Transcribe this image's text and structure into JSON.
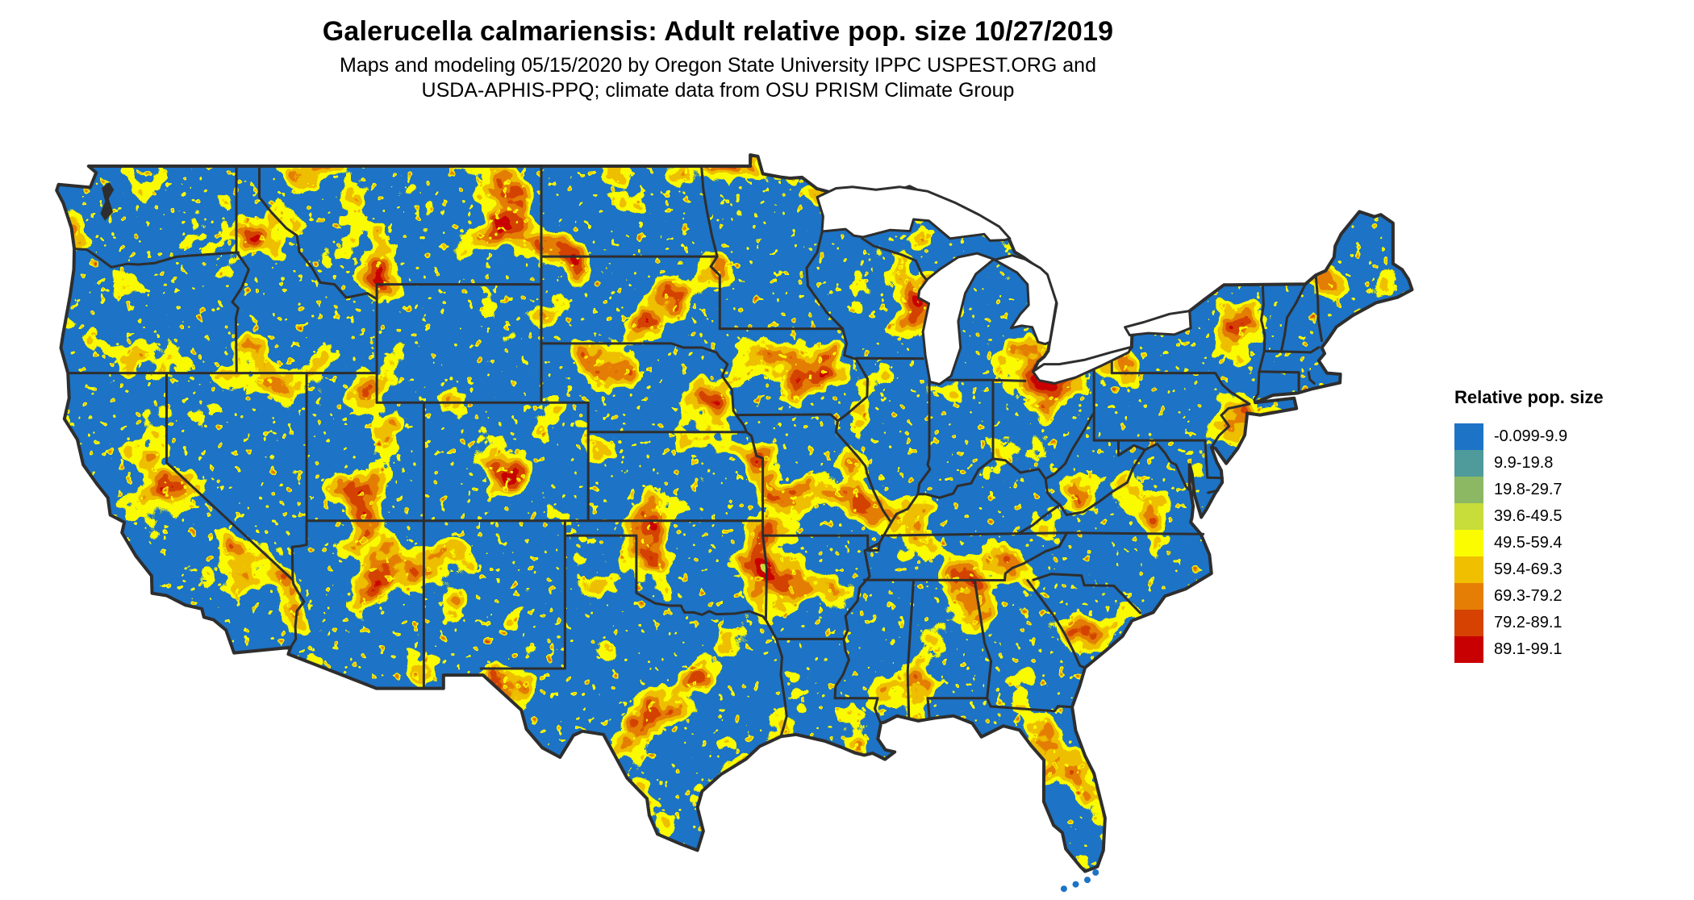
{
  "title": "Galerucella calmariensis: Adult relative pop. size 10/27/2019",
  "subtitle": {
    "line1": "Maps and modeling 05/15/2020 by Oregon State University IPPC USPEST.ORG and",
    "line2": "USDA-APHIS-PPQ; climate data from OSU PRISM Climate Group"
  },
  "legend": {
    "title": "Relative pop. size",
    "items": [
      {
        "label": "-0.099-9.9",
        "color": "#1D73C6"
      },
      {
        "label": "9.9-19.8",
        "color": "#4F9A9B"
      },
      {
        "label": "19.8-29.7",
        "color": "#8CB863"
      },
      {
        "label": "39.6-49.5",
        "color": "#C8DC3A"
      },
      {
        "label": "49.5-59.4",
        "color": "#FBFC00"
      },
      {
        "label": "59.4-69.3",
        "color": "#EFBF00"
      },
      {
        "label": "69.3-79.2",
        "color": "#E57E04"
      },
      {
        "label": "79.2-89.1",
        "color": "#D54202"
      },
      {
        "label": "89.1-99.1",
        "color": "#C90002"
      }
    ]
  },
  "map": {
    "base_color": "#1D73C6",
    "border_color": "#2E2E2E",
    "water_color": "#FFFFFF"
  }
}
